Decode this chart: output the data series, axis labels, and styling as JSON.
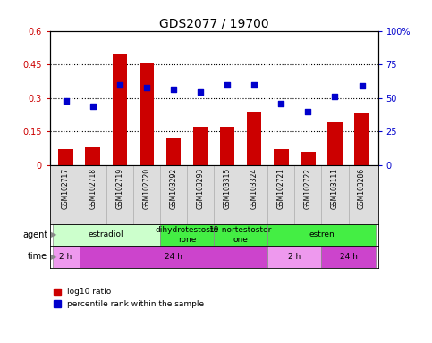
{
  "title": "GDS2077 / 19700",
  "samples": [
    "GSM102717",
    "GSM102718",
    "GSM102719",
    "GSM102720",
    "GSM103292",
    "GSM103293",
    "GSM103315",
    "GSM103324",
    "GSM102721",
    "GSM102722",
    "GSM103111",
    "GSM103286"
  ],
  "log10_ratio": [
    0.07,
    0.08,
    0.5,
    0.46,
    0.12,
    0.17,
    0.17,
    0.24,
    0.07,
    0.06,
    0.19,
    0.23
  ],
  "percentile_rank": [
    0.48,
    0.44,
    0.6,
    0.575,
    0.565,
    0.545,
    0.595,
    0.6,
    0.46,
    0.4,
    0.51,
    0.59
  ],
  "bar_color": "#cc0000",
  "dot_color": "#0000cc",
  "ylim_left": [
    0,
    0.6
  ],
  "ylim_right": [
    0,
    1.0
  ],
  "yticks_left": [
    0,
    0.15,
    0.3,
    0.45,
    0.6
  ],
  "ytick_labels_left": [
    "0",
    "0.15",
    "0.3",
    "0.45",
    "0.6"
  ],
  "yticks_right": [
    0,
    0.25,
    0.5,
    0.75,
    1.0
  ],
  "ytick_labels_right": [
    "0",
    "25",
    "50",
    "75",
    "100%"
  ],
  "hlines": [
    0.15,
    0.3,
    0.45
  ],
  "agent_groups": [
    {
      "text": "estradiol",
      "start": 0,
      "end": 4,
      "color": "#ccffcc"
    },
    {
      "text": "dihydrotestoste\nrone",
      "start": 4,
      "end": 6,
      "color": "#44ee44"
    },
    {
      "text": "19-nortestoster\none",
      "start": 6,
      "end": 8,
      "color": "#44ee44"
    },
    {
      "text": "estren",
      "start": 8,
      "end": 12,
      "color": "#44ee44"
    }
  ],
  "time_groups": [
    {
      "text": "2 h",
      "start": 0,
      "end": 1,
      "color": "#ee99ee"
    },
    {
      "text": "24 h",
      "start": 1,
      "end": 8,
      "color": "#cc44cc"
    },
    {
      "text": "2 h",
      "start": 8,
      "end": 10,
      "color": "#ee99ee"
    },
    {
      "text": "24 h",
      "start": 10,
      "end": 12,
      "color": "#cc44cc"
    }
  ],
  "legend_bar_color": "#cc0000",
  "legend_dot_color": "#0000cc",
  "legend_bar_text": "log10 ratio",
  "legend_dot_text": "percentile rank within the sample",
  "background_color": "#ffffff",
  "title_fontsize": 10,
  "tick_fontsize": 7,
  "sample_fontsize": 5.5,
  "annot_fontsize": 6.5
}
